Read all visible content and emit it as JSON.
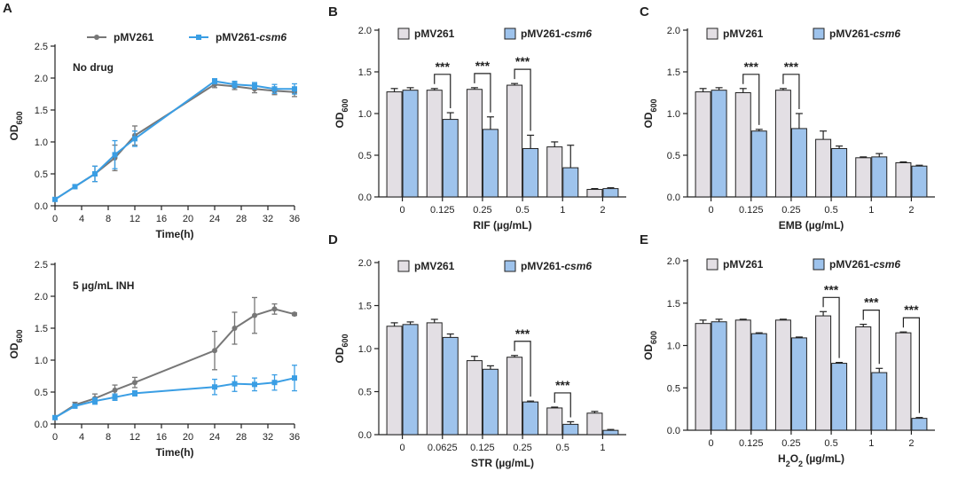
{
  "colors": {
    "grey_line": "#777777",
    "blue_line": "#3a9ee4",
    "bar_grey": "#e3dfe4",
    "bar_blue": "#9ec3ec",
    "axis": "#222222"
  },
  "chart_data": [
    {
      "id": "A1",
      "panel": "A",
      "type": "line",
      "annotation": "No drug",
      "xlabel": "Time(h)",
      "ylabel": "OD",
      "ylabel_sub": "600",
      "xlim": [
        0,
        36
      ],
      "ylim": [
        0,
        2.5
      ],
      "xticks": [
        0,
        4,
        8,
        12,
        16,
        20,
        24,
        28,
        32,
        36
      ],
      "yticks": [
        "0.0",
        "0.5",
        "1.0",
        "1.5",
        "2.0",
        "2.5"
      ],
      "legend": [
        "pMV261",
        "pMV261-csm6"
      ],
      "series": [
        {
          "name": "pMV261",
          "x": [
            0,
            3,
            6,
            9,
            12,
            24,
            27,
            30,
            33,
            36
          ],
          "y": [
            0.1,
            0.3,
            0.5,
            0.75,
            1.1,
            1.9,
            1.87,
            1.83,
            1.8,
            1.78
          ],
          "err": [
            0.02,
            0.03,
            0.12,
            0.2,
            0.15,
            0.05,
            0.05,
            0.06,
            0.06,
            0.07
          ]
        },
        {
          "name": "pMV261-csm6",
          "x": [
            0,
            3,
            6,
            9,
            12,
            24,
            27,
            30,
            33,
            36
          ],
          "y": [
            0.1,
            0.3,
            0.5,
            0.8,
            1.05,
            1.95,
            1.9,
            1.88,
            1.83,
            1.83
          ],
          "err": [
            0.02,
            0.03,
            0.12,
            0.22,
            0.12,
            0.04,
            0.05,
            0.05,
            0.07,
            0.08
          ]
        }
      ]
    },
    {
      "id": "A2",
      "panel": "",
      "type": "line",
      "annotation": "5 µg/mL INH",
      "xlabel": "Time(h)",
      "ylabel": "OD",
      "ylabel_sub": "600",
      "xlim": [
        0,
        36
      ],
      "ylim": [
        0,
        2.5
      ],
      "xticks": [
        0,
        4,
        8,
        12,
        16,
        20,
        24,
        28,
        32,
        36
      ],
      "yticks": [
        "0.0",
        "0.5",
        "1.0",
        "1.5",
        "2.0",
        "2.5"
      ],
      "series": [
        {
          "name": "pMV261",
          "x": [
            0,
            3,
            6,
            9,
            12,
            24,
            27,
            30,
            33,
            36
          ],
          "y": [
            0.1,
            0.3,
            0.4,
            0.53,
            0.65,
            1.15,
            1.5,
            1.7,
            1.8,
            1.72
          ],
          "err": [
            0.02,
            0.04,
            0.07,
            0.08,
            0.08,
            0.3,
            0.25,
            0.28,
            0.08,
            0.02
          ]
        },
        {
          "name": "pMV261-csm6",
          "x": [
            0,
            3,
            6,
            9,
            12,
            24,
            27,
            30,
            33,
            36
          ],
          "y": [
            0.1,
            0.28,
            0.36,
            0.42,
            0.48,
            0.58,
            0.63,
            0.62,
            0.65,
            0.72
          ],
          "err": [
            0.02,
            0.03,
            0.05,
            0.05,
            0.04,
            0.12,
            0.12,
            0.1,
            0.12,
            0.2
          ]
        }
      ]
    },
    {
      "id": "B",
      "panel": "B",
      "type": "bar",
      "xlabel": "RIF (µg/mL)",
      "ylabel": "OD",
      "ylabel_sub": "600",
      "ylim": [
        0,
        2.0
      ],
      "yticks": [
        "0.0",
        "0.5",
        "1.0",
        "1.5",
        "2.0"
      ],
      "categories": [
        "0",
        "0.125",
        "0.25",
        "0.5",
        "1",
        "2"
      ],
      "series": [
        {
          "name": "pMV261",
          "values": [
            1.26,
            1.28,
            1.29,
            1.34,
            0.6,
            0.09
          ],
          "err": [
            0.04,
            0.02,
            0.02,
            0.02,
            0.06,
            0.01
          ]
        },
        {
          "name": "pMV261-csm6",
          "values": [
            1.28,
            0.93,
            0.81,
            0.58,
            0.35,
            0.1
          ],
          "err": [
            0.03,
            0.08,
            0.15,
            0.16,
            0.27,
            0.01
          ]
        }
      ],
      "sig": [
        {
          "cat": 1,
          "label": "***"
        },
        {
          "cat": 2,
          "label": "***"
        },
        {
          "cat": 3,
          "label": "***"
        }
      ]
    },
    {
      "id": "C",
      "panel": "C",
      "type": "bar",
      "xlabel": "EMB (µg/mL)",
      "ylabel": "OD",
      "ylabel_sub": "600",
      "ylim": [
        0,
        2.0
      ],
      "yticks": [
        "0.0",
        "0.5",
        "1.0",
        "1.5",
        "2.0"
      ],
      "categories": [
        "0",
        "0.125",
        "0.25",
        "0.5",
        "1",
        "2"
      ],
      "series": [
        {
          "name": "pMV261",
          "values": [
            1.26,
            1.25,
            1.28,
            0.69,
            0.47,
            0.41
          ],
          "err": [
            0.04,
            0.05,
            0.02,
            0.1,
            0.01,
            0.01
          ]
        },
        {
          "name": "pMV261-csm6",
          "values": [
            1.28,
            0.79,
            0.82,
            0.58,
            0.48,
            0.37
          ],
          "err": [
            0.03,
            0.02,
            0.18,
            0.03,
            0.04,
            0.01
          ]
        }
      ],
      "sig": [
        {
          "cat": 1,
          "label": "***"
        },
        {
          "cat": 2,
          "label": "***"
        }
      ]
    },
    {
      "id": "D",
      "panel": "D",
      "type": "bar",
      "xlabel": "STR (µg/mL)",
      "ylabel": "OD",
      "ylabel_sub": "600",
      "ylim": [
        0,
        2.0
      ],
      "yticks": [
        "0.0",
        "0.5",
        "1.0",
        "1.5",
        "2.0"
      ],
      "categories": [
        "0",
        "0.0625",
        "0.125",
        "0.25",
        "0.5",
        "1"
      ],
      "series": [
        {
          "name": "pMV261",
          "values": [
            1.26,
            1.3,
            0.86,
            0.9,
            0.31,
            0.25
          ],
          "err": [
            0.04,
            0.04,
            0.05,
            0.02,
            0.01,
            0.02
          ]
        },
        {
          "name": "pMV261-csm6",
          "values": [
            1.28,
            1.13,
            0.76,
            0.38,
            0.12,
            0.05
          ],
          "err": [
            0.03,
            0.04,
            0.04,
            0.01,
            0.03,
            0.01
          ]
        }
      ],
      "sig": [
        {
          "cat": 3,
          "label": "***"
        },
        {
          "cat": 4,
          "label": "***"
        }
      ]
    },
    {
      "id": "E",
      "panel": "E",
      "type": "bar",
      "xlabel": "H",
      "xlabel_sub": "2",
      "xlabel_mid": "O",
      "xlabel_sub2": "2",
      "xlabel_tail": " (µg/mL)",
      "ylabel": "OD",
      "ylabel_sub": "600",
      "ylim": [
        0,
        2.0
      ],
      "yticks": [
        "0.0",
        "0.5",
        "1.0",
        "1.5",
        "2.0"
      ],
      "categories": [
        "0",
        "0.125",
        "0.25",
        "0.5",
        "1",
        "2"
      ],
      "series": [
        {
          "name": "pMV261",
          "values": [
            1.26,
            1.3,
            1.3,
            1.35,
            1.22,
            1.15
          ],
          "err": [
            0.04,
            0.01,
            0.01,
            0.05,
            0.03,
            0.01
          ]
        },
        {
          "name": "pMV261-csm6",
          "values": [
            1.28,
            1.14,
            1.09,
            0.79,
            0.68,
            0.14
          ],
          "err": [
            0.03,
            0.01,
            0.01,
            0.01,
            0.05,
            0.01
          ]
        }
      ],
      "sig": [
        {
          "cat": 3,
          "label": "***"
        },
        {
          "cat": 4,
          "label": "***"
        },
        {
          "cat": 5,
          "label": "***"
        }
      ]
    }
  ],
  "legend": {
    "grey": "pMV261",
    "blue_prefix": "pMV261-",
    "blue_suffix": "csm6"
  }
}
